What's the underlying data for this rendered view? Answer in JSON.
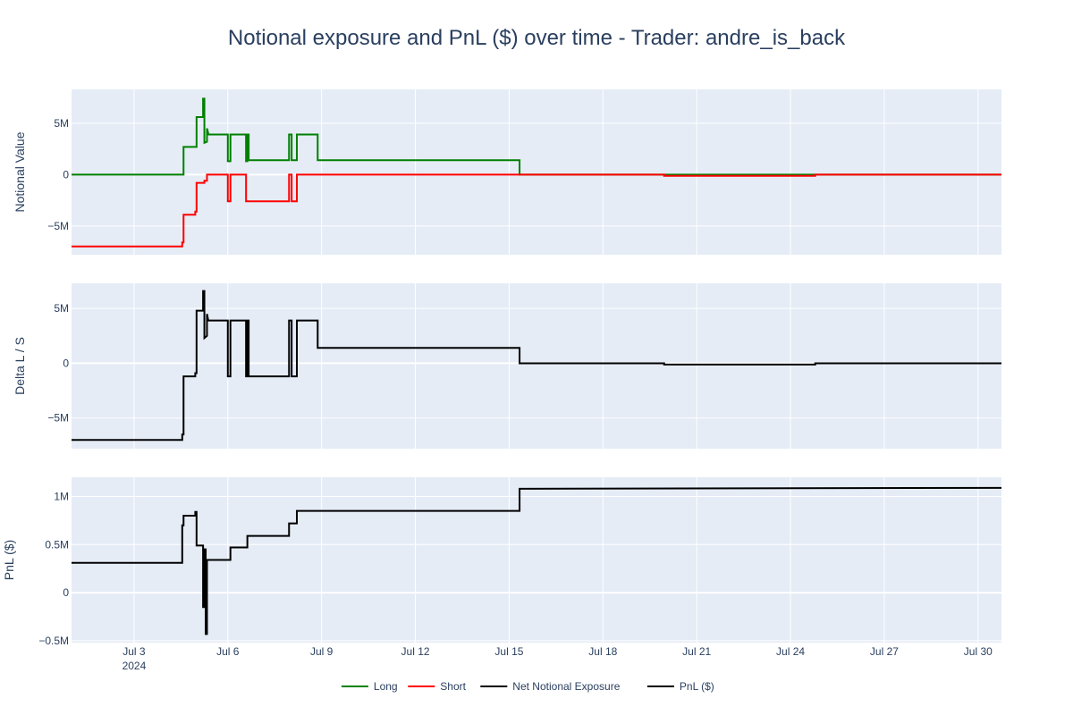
{
  "chart_data": {
    "type": "line",
    "title": "Notional exposure and PnL ($) over time - Trader: andre_is_back",
    "colors": {
      "long": "#008000",
      "short": "#ff0000",
      "net": "#000000",
      "pnl": "#000000",
      "plot_bg": "#e5ecf6",
      "grid": "#ffffff",
      "text": "#2a3f5f"
    },
    "x_axis": {
      "range": [
        "2024-07-01",
        "2024-07-30T18:00"
      ],
      "ticks": [
        {
          "date": "2024-07-03",
          "label": "Jul 3",
          "sublabel": "2024"
        },
        {
          "date": "2024-07-06",
          "label": "Jul 6"
        },
        {
          "date": "2024-07-09",
          "label": "Jul 9"
        },
        {
          "date": "2024-07-12",
          "label": "Jul 12"
        },
        {
          "date": "2024-07-15",
          "label": "Jul 15"
        },
        {
          "date": "2024-07-18",
          "label": "Jul 18"
        },
        {
          "date": "2024-07-21",
          "label": "Jul 21"
        },
        {
          "date": "2024-07-24",
          "label": "Jul 24"
        },
        {
          "date": "2024-07-27",
          "label": "Jul 27"
        },
        {
          "date": "2024-07-30",
          "label": "Jul 30"
        }
      ]
    },
    "panels": [
      {
        "ylabel": "Notional Value",
        "ylim": [
          -7800000,
          8300000
        ],
        "yticks": [
          {
            "value": -5000000,
            "label": "−5M"
          },
          {
            "value": 0,
            "label": "0"
          },
          {
            "value": 5000000,
            "label": "5M"
          }
        ],
        "series": [
          {
            "name": "Long",
            "color": "#008000",
            "points": [
              [
                "2024-07-01",
                0
              ],
              [
                "2024-07-04T14:00",
                0
              ],
              [
                "2024-07-04T14:00",
                2700000
              ],
              [
                "2024-07-05T00:00",
                2700000
              ],
              [
                "2024-07-05T00:00",
                5600000
              ],
              [
                "2024-07-05T05:00",
                5600000
              ],
              [
                "2024-07-05T05:00",
                7400000
              ],
              [
                "2024-07-05T06:00",
                7400000
              ],
              [
                "2024-07-05T06:00",
                3100000
              ],
              [
                "2024-07-05T08:00",
                3200000
              ],
              [
                "2024-07-05T08:00",
                4500000
              ],
              [
                "2024-07-05T09:00",
                4000000
              ],
              [
                "2024-07-05T09:00",
                3900000
              ],
              [
                "2024-07-06T00:00",
                3900000
              ],
              [
                "2024-07-06T00:00",
                1300000
              ],
              [
                "2024-07-06T02:00",
                1300000
              ],
              [
                "2024-07-06T02:00",
                3900000
              ],
              [
                "2024-07-06T14:00",
                3900000
              ],
              [
                "2024-07-06T14:00",
                1300000
              ],
              [
                "2024-07-06T15:00",
                1300000
              ],
              [
                "2024-07-06T15:00",
                3900000
              ],
              [
                "2024-07-06T16:00",
                3900000
              ],
              [
                "2024-07-06T16:00",
                1400000
              ],
              [
                "2024-07-07T23:00",
                1400000
              ],
              [
                "2024-07-07T23:00",
                3900000
              ],
              [
                "2024-07-08T01:00",
                3900000
              ],
              [
                "2024-07-08T01:00",
                1400000
              ],
              [
                "2024-07-08T05:00",
                1400000
              ],
              [
                "2024-07-08T05:00",
                3900000
              ],
              [
                "2024-07-08T21:00",
                3900000
              ],
              [
                "2024-07-08T21:00",
                1400000
              ],
              [
                "2024-07-15T08:00",
                1400000
              ],
              [
                "2024-07-15T08:00",
                0
              ],
              [
                "2024-07-30T18:00",
                0
              ]
            ]
          },
          {
            "name": "Short",
            "color": "#ff0000",
            "points": [
              [
                "2024-07-01",
                -7000000
              ],
              [
                "2024-07-04T13:00",
                -7000000
              ],
              [
                "2024-07-04T13:00",
                -6600000
              ],
              [
                "2024-07-04T14:00",
                -6600000
              ],
              [
                "2024-07-04T14:00",
                -3900000
              ],
              [
                "2024-07-04T23:00",
                -3900000
              ],
              [
                "2024-07-04T23:00",
                -3600000
              ],
              [
                "2024-07-05T00:00",
                -3600000
              ],
              [
                "2024-07-05T00:00",
                -800000
              ],
              [
                "2024-07-05T06:00",
                -800000
              ],
              [
                "2024-07-05T06:00",
                -600000
              ],
              [
                "2024-07-05T08:00",
                -600000
              ],
              [
                "2024-07-05T08:00",
                0
              ],
              [
                "2024-07-06T00:00",
                0
              ],
              [
                "2024-07-06T00:00",
                -2600000
              ],
              [
                "2024-07-06T02:00",
                -2600000
              ],
              [
                "2024-07-06T02:00",
                0
              ],
              [
                "2024-07-06T14:00",
                0
              ],
              [
                "2024-07-06T14:00",
                -2600000
              ],
              [
                "2024-07-07T23:00",
                -2600000
              ],
              [
                "2024-07-07T23:00",
                0
              ],
              [
                "2024-07-08T01:00",
                0
              ],
              [
                "2024-07-08T01:00",
                -2600000
              ],
              [
                "2024-07-08T05:00",
                -2600000
              ],
              [
                "2024-07-08T05:00",
                0
              ],
              [
                "2024-07-19T23:00",
                0
              ],
              [
                "2024-07-19T23:00",
                -120000
              ],
              [
                "2024-07-24T19:00",
                -120000
              ],
              [
                "2024-07-24T19:00",
                0
              ],
              [
                "2024-07-30T18:00",
                0
              ]
            ]
          }
        ]
      },
      {
        "ylabel": "Delta L / S",
        "ylim": [
          -7800000,
          7300000
        ],
        "yticks": [
          {
            "value": -5000000,
            "label": "−5M"
          },
          {
            "value": 0,
            "label": "0"
          },
          {
            "value": 5000000,
            "label": "5M"
          }
        ],
        "series": [
          {
            "name": "Net Notional Exposure",
            "color": "#000000",
            "points": [
              [
                "2024-07-01",
                -7000000
              ],
              [
                "2024-07-04T13:00",
                -7000000
              ],
              [
                "2024-07-04T13:00",
                -6500000
              ],
              [
                "2024-07-04T14:00",
                -6500000
              ],
              [
                "2024-07-04T14:00",
                -1200000
              ],
              [
                "2024-07-04T23:00",
                -1200000
              ],
              [
                "2024-07-04T23:00",
                -900000
              ],
              [
                "2024-07-05T00:00",
                -900000
              ],
              [
                "2024-07-05T00:00",
                4800000
              ],
              [
                "2024-07-05T05:00",
                4800000
              ],
              [
                "2024-07-05T05:00",
                6600000
              ],
              [
                "2024-07-05T06:00",
                6600000
              ],
              [
                "2024-07-05T06:00",
                2300000
              ],
              [
                "2024-07-05T08:00",
                2500000
              ],
              [
                "2024-07-05T08:00",
                4500000
              ],
              [
                "2024-07-05T09:00",
                3900000
              ],
              [
                "2024-07-06T00:00",
                3900000
              ],
              [
                "2024-07-06T00:00",
                -1200000
              ],
              [
                "2024-07-06T02:00",
                -1200000
              ],
              [
                "2024-07-06T02:00",
                3900000
              ],
              [
                "2024-07-06T14:00",
                3900000
              ],
              [
                "2024-07-06T14:00",
                -1200000
              ],
              [
                "2024-07-06T15:00",
                -1200000
              ],
              [
                "2024-07-06T15:00",
                3900000
              ],
              [
                "2024-07-06T16:00",
                3900000
              ],
              [
                "2024-07-06T16:00",
                -1200000
              ],
              [
                "2024-07-07T23:00",
                -1200000
              ],
              [
                "2024-07-07T23:00",
                3900000
              ],
              [
                "2024-07-08T01:00",
                3900000
              ],
              [
                "2024-07-08T01:00",
                -1200000
              ],
              [
                "2024-07-08T05:00",
                -1200000
              ],
              [
                "2024-07-08T05:00",
                3900000
              ],
              [
                "2024-07-08T21:00",
                3900000
              ],
              [
                "2024-07-08T21:00",
                1400000
              ],
              [
                "2024-07-15T08:00",
                1400000
              ],
              [
                "2024-07-15T08:00",
                0
              ],
              [
                "2024-07-19T23:00",
                0
              ],
              [
                "2024-07-19T23:00",
                -120000
              ],
              [
                "2024-07-24T19:00",
                -120000
              ],
              [
                "2024-07-24T19:00",
                0
              ],
              [
                "2024-07-30T18:00",
                0
              ]
            ]
          }
        ]
      },
      {
        "ylabel": "PnL ($)",
        "ylim": [
          -520000,
          1200000
        ],
        "yticks": [
          {
            "value": -500000,
            "label": "−0.5M"
          },
          {
            "value": 0,
            "label": "0"
          },
          {
            "value": 500000,
            "label": "0.5M"
          },
          {
            "value": 1000000,
            "label": "1M"
          }
        ],
        "series": [
          {
            "name": "PnL ($)",
            "color": "#000000",
            "points": [
              [
                "2024-07-01",
                310000
              ],
              [
                "2024-07-04T13:00",
                310000
              ],
              [
                "2024-07-04T13:00",
                700000
              ],
              [
                "2024-07-04T14:00",
                700000
              ],
              [
                "2024-07-04T14:00",
                800000
              ],
              [
                "2024-07-04T23:00",
                800000
              ],
              [
                "2024-07-04T23:00",
                840000
              ],
              [
                "2024-07-05T00:00",
                840000
              ],
              [
                "2024-07-05T00:00",
                490000
              ],
              [
                "2024-07-05T05:00",
                490000
              ],
              [
                "2024-07-05T05:00",
                -150000
              ],
              [
                "2024-07-05T06:00",
                -150000
              ],
              [
                "2024-07-05T06:00",
                450000
              ],
              [
                "2024-07-05T07:00",
                450000
              ],
              [
                "2024-07-05T07:00",
                -430000
              ],
              [
                "2024-07-05T08:00",
                -430000
              ],
              [
                "2024-07-05T08:00",
                340000
              ],
              [
                "2024-07-06T02:00",
                340000
              ],
              [
                "2024-07-06T02:00",
                470000
              ],
              [
                "2024-07-06T15:00",
                470000
              ],
              [
                "2024-07-06T15:00",
                590000
              ],
              [
                "2024-07-07T23:00",
                590000
              ],
              [
                "2024-07-07T23:00",
                720000
              ],
              [
                "2024-07-08T05:00",
                720000
              ],
              [
                "2024-07-08T05:00",
                850000
              ],
              [
                "2024-07-15T08:00",
                850000
              ],
              [
                "2024-07-15T08:00",
                1080000
              ],
              [
                "2024-07-30T18:00",
                1090000
              ]
            ]
          }
        ]
      }
    ],
    "legend": {
      "placement": "bottom-center",
      "entries": [
        {
          "name": "Long",
          "color": "#008000"
        },
        {
          "name": "Short",
          "color": "#ff0000"
        },
        {
          "name": "Net Notional Exposure",
          "color": "#000000"
        },
        {
          "name": "PnL ($)",
          "color": "#000000"
        }
      ]
    }
  }
}
